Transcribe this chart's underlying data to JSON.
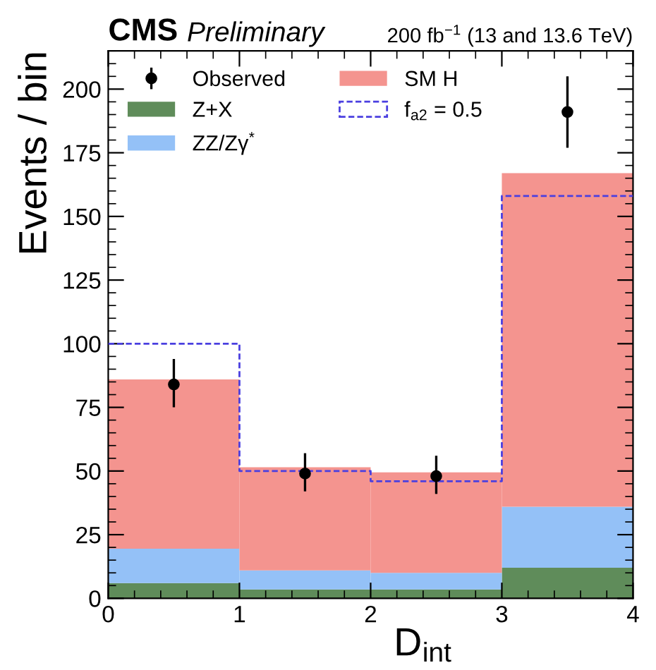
{
  "chart_data": {
    "type": "bar",
    "stacked": true,
    "title": "CMS",
    "subtitle": "Preliminary",
    "annotations": [
      "200 fb$^{−1}$ (13 and 13.6 TeV)"
    ],
    "xlabel": "D$_{int}$",
    "ylabel": "Events / bin",
    "x": [
      0.5,
      1.5,
      2.5,
      3.5
    ],
    "xlim": [
      0,
      4
    ],
    "xticks": [
      0,
      1,
      2,
      3,
      4
    ],
    "ylim": [
      0,
      215
    ],
    "yticks": [
      0,
      25,
      50,
      75,
      100,
      125,
      150,
      175,
      200
    ],
    "legend": "top left",
    "grid": false,
    "series": [
      {
        "name": "Observed",
        "type": "scatter",
        "color": "#000000",
        "marker": "circle",
        "values": [
          84,
          49,
          48,
          191
        ],
        "errors": [
          [
            75,
            94
          ],
          [
            42,
            57
          ],
          [
            41,
            56
          ],
          [
            177,
            205
          ]
        ]
      },
      {
        "name": "Z+X",
        "color": "#5f8c5a",
        "values": [
          6,
          3.5,
          3.5,
          12
        ]
      },
      {
        "name": "ZZ/Zγ$^{*}$",
        "color": "#94c1f7",
        "values": [
          13.5,
          7.5,
          6.5,
          24
        ]
      },
      {
        "name": "SM H",
        "color": "#f4948f",
        "values": [
          66.5,
          40.5,
          39.5,
          131
        ]
      },
      {
        "name": "f$_{a2}$ = 0.5",
        "type": "step",
        "color": "#4a3fe0",
        "line_style": "dashed",
        "x": [
          0,
          1,
          2,
          3,
          4
        ],
        "values": [
          100,
          50,
          46,
          158,
          158
        ]
      }
    ]
  }
}
